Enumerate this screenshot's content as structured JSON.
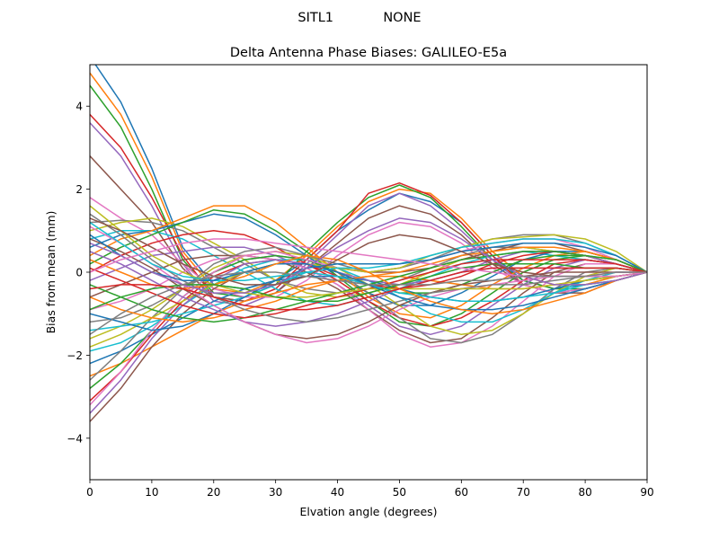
{
  "chart_data": {
    "type": "line",
    "suptitle": "SITL1            NONE",
    "title": "Delta Antenna Phase Biases: GALILEO-E5a",
    "xlabel": "Elvation angle (degrees)",
    "ylabel": "Bias from mean (mm)",
    "xlim": [
      0,
      90
    ],
    "ylim": [
      -5,
      5
    ],
    "xticks": [
      0,
      10,
      20,
      30,
      40,
      50,
      60,
      70,
      80,
      90
    ],
    "yticks": [
      -4,
      -2,
      0,
      2,
      4
    ],
    "grid": false,
    "legend": "none",
    "x": [
      0,
      5,
      10,
      15,
      20,
      25,
      30,
      35,
      40,
      45,
      50,
      55,
      60,
      65,
      70,
      75,
      80,
      85,
      90
    ],
    "color_cycle": [
      "#1f77b4",
      "#ff7f0e",
      "#2ca02c",
      "#d62728",
      "#9467bd",
      "#8c564b",
      "#e377c2",
      "#7f7f7f",
      "#bcbd22",
      "#17becf"
    ],
    "series": [
      {
        "values": [
          5.2,
          4.1,
          2.5,
          0.6,
          -0.3,
          -0.4,
          -0.2,
          0.3,
          1.0,
          1.5,
          1.9,
          1.7,
          1.2,
          0.4,
          -0.2,
          -0.4,
          -0.3,
          -0.2,
          0
        ]
      },
      {
        "values": [
          4.8,
          3.8,
          2.3,
          0.5,
          -0.4,
          -0.5,
          -0.2,
          0.4,
          1.1,
          1.7,
          2.0,
          1.9,
          1.3,
          0.5,
          -0.1,
          -0.3,
          -0.3,
          -0.1,
          0
        ]
      },
      {
        "values": [
          4.5,
          3.5,
          2.0,
          0.3,
          -0.5,
          -0.6,
          -0.3,
          0.5,
          1.2,
          1.8,
          2.1,
          1.8,
          1.1,
          0.3,
          -0.2,
          -0.4,
          -0.4,
          -0.2,
          0
        ]
      },
      {
        "values": [
          3.8,
          3.0,
          1.8,
          0.4,
          -0.6,
          -0.7,
          -0.4,
          0.3,
          1.0,
          1.9,
          2.15,
          1.85,
          1.2,
          0.4,
          -0.3,
          -0.5,
          -0.4,
          -0.2,
          0
        ]
      },
      {
        "values": [
          3.6,
          2.8,
          1.6,
          0.2,
          -0.7,
          -0.8,
          -0.5,
          0.2,
          0.9,
          1.6,
          1.9,
          1.6,
          1.0,
          0.3,
          -0.3,
          -0.5,
          -0.4,
          -0.2,
          0
        ]
      },
      {
        "values": [
          2.8,
          2.0,
          1.2,
          0.1,
          -0.6,
          -0.7,
          -0.5,
          0.1,
          0.7,
          1.3,
          1.6,
          1.4,
          0.9,
          0.2,
          -0.3,
          -0.5,
          -0.5,
          -0.2,
          0
        ]
      },
      {
        "values": [
          1.8,
          1.3,
          0.9,
          0.2,
          -0.4,
          -0.6,
          -0.6,
          -0.2,
          0.4,
          0.9,
          1.2,
          1.1,
          0.7,
          0.1,
          -0.3,
          -0.5,
          -0.4,
          -0.2,
          0
        ]
      },
      {
        "values": [
          1.2,
          1.25,
          1.2,
          1.0,
          0.6,
          0.2,
          -0.2,
          -0.4,
          -0.5,
          -0.4,
          -0.2,
          0.1,
          0.4,
          0.6,
          0.6,
          0.5,
          0.4,
          0.2,
          0
        ]
      },
      {
        "values": [
          1.0,
          1.2,
          1.3,
          1.1,
          0.7,
          0.3,
          -0.2,
          -0.5,
          -0.6,
          -0.5,
          -0.3,
          0.0,
          0.3,
          0.5,
          0.6,
          0.5,
          0.4,
          0.2,
          0
        ]
      },
      {
        "values": [
          0.8,
          1.0,
          1.0,
          0.8,
          0.4,
          0.0,
          -0.4,
          -0.7,
          -0.8,
          -0.6,
          -0.4,
          -0.1,
          0.2,
          0.4,
          0.5,
          0.4,
          0.3,
          0.2,
          0
        ]
      },
      {
        "values": [
          0.6,
          0.9,
          1.0,
          1.2,
          1.4,
          1.3,
          0.9,
          0.4,
          -0.1,
          -0.5,
          -0.8,
          -0.8,
          -0.5,
          -0.1,
          0.3,
          0.5,
          0.5,
          0.3,
          0
        ]
      },
      {
        "values": [
          0.4,
          0.8,
          1.0,
          1.3,
          1.6,
          1.6,
          1.2,
          0.6,
          0.0,
          -0.6,
          -1.0,
          -1.1,
          -0.8,
          -0.3,
          0.1,
          0.4,
          0.5,
          0.3,
          0
        ]
      },
      {
        "values": [
          0.2,
          0.6,
          0.9,
          1.2,
          1.5,
          1.4,
          1.0,
          0.5,
          -0.1,
          -0.7,
          -1.2,
          -1.3,
          -1.0,
          -0.5,
          0.0,
          0.3,
          0.4,
          0.3,
          0
        ]
      },
      {
        "values": [
          0.0,
          0.4,
          0.7,
          0.9,
          1.0,
          0.9,
          0.6,
          0.2,
          -0.2,
          -0.7,
          -1.1,
          -1.3,
          -1.1,
          -0.7,
          -0.2,
          0.2,
          0.3,
          0.2,
          0
        ]
      },
      {
        "values": [
          -0.2,
          0.1,
          0.4,
          0.5,
          0.6,
          0.6,
          0.4,
          0.1,
          -0.3,
          -0.8,
          -1.3,
          -1.5,
          -1.3,
          -0.8,
          -0.3,
          0.1,
          0.3,
          0.2,
          0
        ]
      },
      {
        "values": [
          -0.6,
          -0.3,
          0.0,
          0.3,
          0.4,
          0.4,
          0.3,
          0.0,
          -0.4,
          -0.9,
          -1.4,
          -1.7,
          -1.6,
          -1.1,
          -0.5,
          0.0,
          0.2,
          0.2,
          0
        ]
      },
      {
        "values": [
          -0.9,
          -0.7,
          -0.4,
          0.0,
          0.3,
          0.4,
          0.3,
          0.1,
          -0.3,
          -0.9,
          -1.5,
          -1.8,
          -1.7,
          -1.3,
          -0.7,
          -0.1,
          0.2,
          0.2,
          0
        ]
      },
      {
        "values": [
          -1.2,
          -1.1,
          -0.8,
          -0.4,
          0.0,
          0.3,
          0.4,
          0.3,
          0.0,
          -0.5,
          -1.1,
          -1.6,
          -1.7,
          -1.5,
          -1.0,
          -0.4,
          0.0,
          0.1,
          0
        ]
      },
      {
        "values": [
          -1.6,
          -1.3,
          -0.9,
          -0.4,
          0.1,
          0.4,
          0.5,
          0.4,
          0.1,
          -0.3,
          -0.8,
          -1.3,
          -1.5,
          -1.4,
          -1.0,
          -0.5,
          -0.1,
          0.1,
          0
        ]
      },
      {
        "values": [
          -1.9,
          -1.7,
          -1.3,
          -0.8,
          -0.3,
          0.1,
          0.3,
          0.3,
          0.1,
          -0.2,
          -0.6,
          -1.0,
          -1.2,
          -1.2,
          -0.9,
          -0.5,
          -0.2,
          0.0,
          0
        ]
      },
      {
        "values": [
          -2.2,
          -1.9,
          -1.5,
          -1.1,
          -0.7,
          -0.4,
          -0.2,
          -0.1,
          -0.1,
          -0.2,
          -0.4,
          -0.6,
          -0.7,
          -0.7,
          -0.6,
          -0.4,
          -0.2,
          -0.1,
          0
        ]
      },
      {
        "values": [
          -2.5,
          -2.2,
          -1.8,
          -1.4,
          -1.0,
          -0.7,
          -0.5,
          -0.3,
          -0.2,
          -0.1,
          -0.1,
          -0.2,
          -0.3,
          -0.4,
          -0.4,
          -0.3,
          -0.2,
          -0.1,
          0
        ]
      },
      {
        "values": [
          -2.8,
          -2.2,
          -1.4,
          -0.6,
          0.0,
          0.3,
          0.4,
          0.3,
          0.0,
          -0.3,
          -0.5,
          -0.5,
          -0.3,
          0.0,
          0.3,
          0.4,
          0.4,
          0.2,
          0
        ]
      },
      {
        "values": [
          -3.1,
          -2.4,
          -1.5,
          -0.7,
          -0.1,
          0.2,
          0.3,
          0.2,
          -0.1,
          -0.3,
          -0.4,
          -0.3,
          -0.1,
          0.2,
          0.4,
          0.5,
          0.4,
          0.2,
          0
        ]
      },
      {
        "values": [
          -3.4,
          -2.6,
          -1.6,
          -0.8,
          -0.2,
          0.2,
          0.3,
          0.2,
          0.0,
          -0.2,
          -0.3,
          -0.2,
          0.0,
          0.3,
          0.5,
          0.5,
          0.4,
          0.2,
          0
        ]
      },
      {
        "values": [
          -3.6,
          -2.8,
          -1.8,
          -1.0,
          -0.4,
          0.0,
          0.2,
          0.2,
          0.1,
          0.0,
          0.0,
          0.1,
          0.3,
          0.5,
          0.7,
          0.7,
          0.5,
          0.3,
          0
        ]
      },
      {
        "values": [
          -3.2,
          -2.4,
          -1.4,
          -0.6,
          0.0,
          0.4,
          0.5,
          0.3,
          0.1,
          0.0,
          0.1,
          0.3,
          0.5,
          0.7,
          0.8,
          0.8,
          0.6,
          0.3,
          0
        ]
      },
      {
        "values": [
          -2.6,
          -1.9,
          -1.1,
          -0.4,
          0.2,
          0.5,
          0.6,
          0.4,
          0.2,
          0.0,
          0.1,
          0.3,
          0.6,
          0.8,
          0.9,
          0.9,
          0.7,
          0.4,
          0
        ]
      },
      {
        "values": [
          -1.8,
          -1.5,
          -1.1,
          -0.7,
          -0.3,
          0.0,
          0.2,
          0.2,
          0.1,
          0.0,
          0.1,
          0.4,
          0.6,
          0.8,
          0.85,
          0.9,
          0.8,
          0.5,
          0
        ]
      },
      {
        "values": [
          -1.4,
          -1.3,
          -1.2,
          -1.0,
          -0.8,
          -0.6,
          -0.3,
          0.0,
          0.1,
          0.1,
          0.2,
          0.4,
          0.6,
          0.7,
          0.8,
          0.8,
          0.7,
          0.4,
          0
        ]
      },
      {
        "values": [
          -1.0,
          -1.2,
          -1.4,
          -1.3,
          -1.0,
          -0.6,
          -0.2,
          0.1,
          0.2,
          0.2,
          0.2,
          0.3,
          0.5,
          0.6,
          0.7,
          0.7,
          0.6,
          0.4,
          0
        ]
      },
      {
        "values": [
          -0.6,
          -0.9,
          -1.1,
          -1.2,
          -1.1,
          -0.9,
          -0.7,
          -0.4,
          -0.2,
          -0.1,
          0.0,
          0.2,
          0.4,
          0.5,
          0.6,
          0.6,
          0.5,
          0.3,
          0
        ]
      },
      {
        "values": [
          -0.3,
          -0.6,
          -0.9,
          -1.1,
          -1.2,
          -1.1,
          -0.9,
          -0.7,
          -0.5,
          -0.3,
          -0.1,
          0.1,
          0.3,
          0.4,
          0.5,
          0.5,
          0.4,
          0.3,
          0
        ]
      },
      {
        "values": [
          0.1,
          -0.2,
          -0.5,
          -0.8,
          -1.0,
          -1.1,
          -1.0,
          -0.8,
          -0.6,
          -0.4,
          -0.2,
          0.0,
          0.2,
          0.3,
          0.3,
          0.3,
          0.3,
          0.2,
          0
        ]
      },
      {
        "values": [
          0.5,
          0.2,
          -0.2,
          -0.6,
          -0.9,
          -1.2,
          -1.3,
          -1.2,
          -1.0,
          -0.7,
          -0.4,
          -0.2,
          0.0,
          0.1,
          0.1,
          0.1,
          0.1,
          0.1,
          0
        ]
      },
      {
        "values": [
          0.8,
          0.5,
          0.1,
          -0.4,
          -0.8,
          -1.2,
          -1.5,
          -1.6,
          -1.5,
          -1.2,
          -0.8,
          -0.5,
          -0.3,
          -0.2,
          -0.1,
          0.0,
          0.0,
          0.0,
          0
        ]
      },
      {
        "values": [
          1.1,
          0.7,
          0.2,
          -0.3,
          -0.8,
          -1.2,
          -1.5,
          -1.7,
          -1.6,
          -1.3,
          -0.9,
          -0.6,
          -0.4,
          -0.3,
          -0.2,
          -0.1,
          -0.1,
          0.0,
          0
        ]
      },
      {
        "values": [
          1.4,
          0.9,
          0.3,
          -0.2,
          -0.6,
          -0.9,
          -1.1,
          -1.2,
          -1.1,
          -0.9,
          -0.7,
          -0.5,
          -0.4,
          -0.3,
          -0.3,
          -0.2,
          -0.1,
          -0.1,
          0
        ]
      },
      {
        "values": [
          1.6,
          1.0,
          0.4,
          0.0,
          -0.3,
          -0.5,
          -0.6,
          -0.6,
          -0.5,
          -0.4,
          -0.4,
          -0.4,
          -0.4,
          -0.4,
          -0.4,
          -0.3,
          -0.2,
          -0.1,
          0
        ]
      },
      {
        "values": [
          1.2,
          0.7,
          0.2,
          -0.1,
          -0.2,
          -0.2,
          -0.1,
          0.0,
          -0.1,
          -0.3,
          -0.5,
          -0.6,
          -0.7,
          -0.7,
          -0.6,
          -0.5,
          -0.3,
          -0.2,
          0
        ]
      },
      {
        "values": [
          0.9,
          0.4,
          0.0,
          -0.2,
          -0.2,
          0.0,
          0.2,
          0.2,
          0.0,
          -0.3,
          -0.6,
          -0.8,
          -0.9,
          -0.9,
          -0.8,
          -0.6,
          -0.4,
          -0.2,
          0
        ]
      },
      {
        "values": [
          0.3,
          0.0,
          -0.3,
          -0.4,
          -0.3,
          -0.1,
          0.2,
          0.4,
          0.3,
          0.0,
          -0.4,
          -0.7,
          -0.9,
          -1.0,
          -0.9,
          -0.7,
          -0.5,
          -0.2,
          0
        ]
      },
      {
        "values": [
          -0.9,
          -0.6,
          -0.4,
          -0.3,
          -0.3,
          -0.4,
          -0.6,
          -0.7,
          -0.7,
          -0.5,
          -0.3,
          -0.1,
          0.1,
          0.2,
          0.2,
          0.2,
          0.1,
          0.1,
          0
        ]
      },
      {
        "values": [
          -0.4,
          -0.3,
          -0.3,
          -0.4,
          -0.6,
          -0.8,
          -0.9,
          -0.9,
          -0.8,
          -0.6,
          -0.4,
          -0.2,
          0.0,
          0.1,
          0.1,
          0.1,
          0.1,
          0.1,
          0
        ]
      },
      {
        "values": [
          0.7,
          0.4,
          0.0,
          -0.3,
          -0.5,
          -0.5,
          -0.3,
          0.1,
          0.6,
          1.0,
          1.3,
          1.2,
          0.8,
          0.3,
          -0.1,
          -0.3,
          -0.3,
          -0.2,
          0
        ]
      },
      {
        "values": [
          1.3,
          1.0,
          0.6,
          0.2,
          -0.1,
          -0.3,
          -0.3,
          -0.1,
          0.3,
          0.7,
          0.9,
          0.8,
          0.5,
          0.2,
          0.0,
          -0.1,
          -0.1,
          -0.1,
          0
        ]
      },
      {
        "values": [
          0.0,
          0.3,
          0.5,
          0.7,
          0.8,
          0.8,
          0.7,
          0.6,
          0.5,
          0.4,
          0.3,
          0.2,
          0.1,
          0.0,
          -0.1,
          -0.1,
          -0.1,
          -0.1,
          0
        ]
      },
      {
        "values": [
          -1.5,
          -1.0,
          -0.6,
          -0.3,
          -0.1,
          0.0,
          0.0,
          -0.1,
          -0.2,
          -0.3,
          -0.3,
          -0.3,
          -0.2,
          -0.2,
          -0.1,
          -0.1,
          -0.1,
          0.0,
          0
        ]
      }
    ]
  }
}
